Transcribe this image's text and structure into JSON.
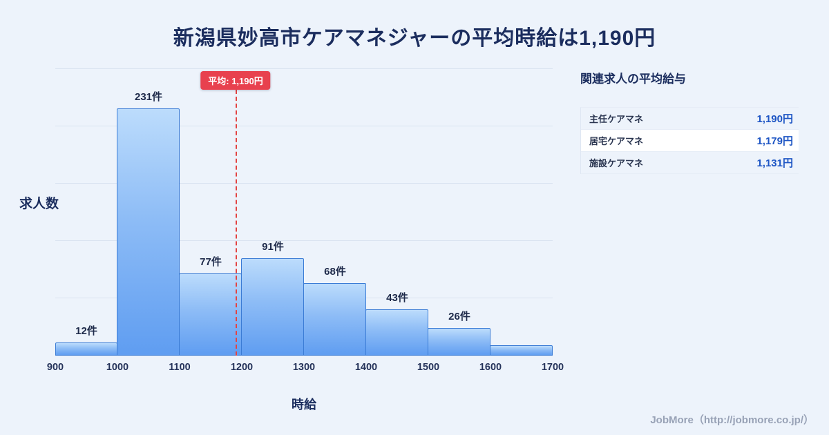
{
  "title": "新潟県妙高市ケアマネジャーの平均時給は1,190円",
  "chart_data": {
    "type": "bar",
    "subtype": "histogram",
    "title": "新潟県妙高市ケアマネジャーの平均時給は1,190円",
    "xlabel": "時給",
    "ylabel": "求人数",
    "bin_edges": [
      900,
      1000,
      1100,
      1200,
      1300,
      1400,
      1500,
      1600,
      1700
    ],
    "x_tick_labels": [
      "900",
      "1000",
      "1100",
      "1200",
      "1300",
      "1400",
      "1500",
      "1600",
      "1700"
    ],
    "values": [
      12,
      231,
      77,
      91,
      68,
      43,
      26,
      10
    ],
    "bar_labels": [
      "12件",
      "231件",
      "77件",
      "91件",
      "68件",
      "43件",
      "26件",
      ""
    ],
    "average_line": {
      "x": 1190,
      "label": "平均: 1,190円",
      "color": "#e8414e",
      "style": "dashed"
    },
    "ylim": [
      0,
      268
    ],
    "grid": "horizontal",
    "legend": "none",
    "bar_color_top": "#bcdcfc",
    "bar_color_bottom": "#5f9df1",
    "bar_border_color": "#3a7bd5"
  },
  "side_panel": {
    "title": "関連求人の平均給与",
    "rows": [
      {
        "label": "主任ケアマネ",
        "value": "1,190円"
      },
      {
        "label": "居宅ケアマネ",
        "value": "1,179円"
      },
      {
        "label": "施設ケアマネ",
        "value": "1,131円"
      }
    ]
  },
  "footer": {
    "credit": "JobMore（http://jobmore.co.jp/）"
  },
  "colors": {
    "background": "#edf3fb",
    "title_navy": "#1b2d5e",
    "accent_red": "#e8414e",
    "value_blue": "#1d55c4",
    "gridline": "#d9e3f0"
  }
}
